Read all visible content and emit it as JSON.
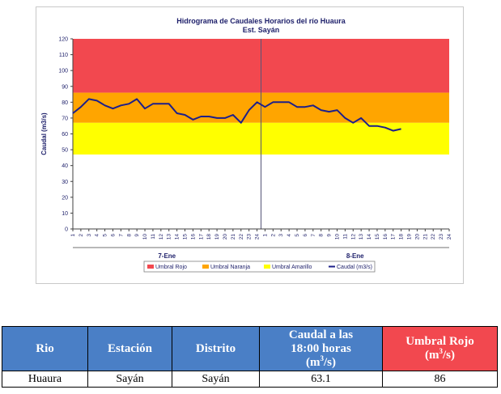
{
  "chart_data": {
    "type": "line",
    "title": "Hidrograma de Caudales Horarios del río Huaura",
    "subtitle": "Est. Sayán",
    "ylabel": "Caudal  (m3/s)",
    "ylim": [
      0,
      120
    ],
    "yticks": [
      0,
      10,
      20,
      30,
      40,
      50,
      60,
      70,
      80,
      90,
      100,
      110,
      120
    ],
    "day_groups": [
      {
        "label": "7-Ene",
        "hours": [
          "1",
          "2",
          "3",
          "4",
          "5",
          "6",
          "7",
          "8",
          "9",
          "10",
          "11",
          "12",
          "13",
          "14",
          "15",
          "16",
          "17",
          "18",
          "19",
          "20",
          "21",
          "22",
          "23",
          "24"
        ]
      },
      {
        "label": "8-Ene",
        "hours": [
          "1",
          "2",
          "3",
          "4",
          "5",
          "6",
          "7",
          "8",
          "9",
          "10",
          "11",
          "12",
          "13",
          "14",
          "15",
          "16",
          "17",
          "18",
          "19",
          "20",
          "21",
          "22",
          "23",
          "24"
        ]
      }
    ],
    "bands": [
      {
        "name": "Umbral Rojo",
        "from": 86,
        "to": 120,
        "color": "#f2484f"
      },
      {
        "name": "Umbral Naranja",
        "from": 67,
        "to": 86,
        "color": "#ffa500"
      },
      {
        "name": "Umbral Amarillo",
        "from": 47,
        "to": 67,
        "color": "#ffff00"
      }
    ],
    "series": [
      {
        "name": "Caudal (m3/s)",
        "color": "#1d1f8a",
        "values": [
          73,
          77,
          82,
          81,
          78,
          76,
          78,
          79,
          82,
          76,
          79,
          79,
          79,
          73,
          72,
          69,
          71,
          71,
          70,
          70,
          72,
          67,
          75,
          80,
          77,
          80,
          80,
          80,
          77,
          77,
          78,
          75,
          74,
          75,
          70,
          67,
          70,
          65,
          65,
          64,
          62,
          63.1
        ]
      }
    ],
    "legend_position": "bottom"
  },
  "legend": [
    {
      "label": "Umbral Rojo",
      "color": "#f2484f",
      "kind": "box"
    },
    {
      "label": "Umbral Naranja",
      "color": "#ffa500",
      "kind": "box"
    },
    {
      "label": "Umbral Amarillo",
      "color": "#ffff00",
      "kind": "box"
    },
    {
      "label": "Caudal (m3/s)",
      "color": "#1d1f8a",
      "kind": "line"
    }
  ],
  "table": {
    "headers": {
      "rio": "Rio",
      "estacion": "Estación",
      "distrito": "Distrito",
      "caudal_line1": "Caudal a las",
      "caudal_line2": "18:00 horas",
      "caudal_unit_pre": "(m",
      "caudal_unit_sup": "3",
      "caudal_unit_post": "/s)",
      "umbral_line1": "Umbral Rojo",
      "umbral_unit_pre": "(m",
      "umbral_unit_sup": "3",
      "umbral_unit_post": "/s)"
    },
    "row": {
      "rio": "Huaura",
      "estacion": "Sayán",
      "distrito": "Sayán",
      "caudal": "63.1",
      "umbral": "86"
    }
  }
}
